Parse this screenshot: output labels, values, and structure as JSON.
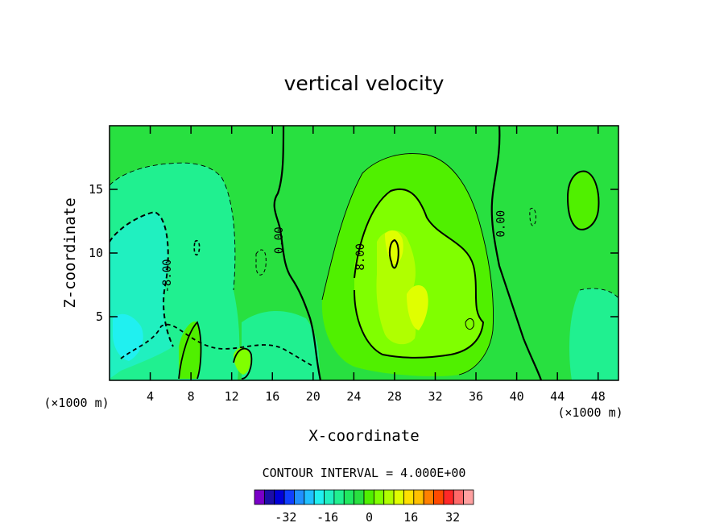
{
  "chart_data": {
    "type": "contour",
    "title": "vertical velocity",
    "xlabel": "X-coordinate",
    "ylabel": "Z-coordinate",
    "x_unit": "(×1000 m)",
    "y_unit": "(×1000 m)",
    "xlim": [
      0,
      50
    ],
    "ylim": [
      0,
      20
    ],
    "x_ticks": [
      4,
      8,
      12,
      16,
      20,
      24,
      28,
      32,
      36,
      40,
      44,
      48
    ],
    "y_ticks": [
      5,
      10,
      15
    ],
    "contour_interval_text": "CONTOUR INTERVAL = 4.000E+00",
    "contour_interval": 4,
    "contour_labels": [
      {
        "text": "-8.00",
        "x": 6.0,
        "y": 8.2
      },
      {
        "text": "0.00",
        "x": 17.0,
        "y": 11.0
      },
      {
        "text": "8.00",
        "x": 25.0,
        "y": 9.7
      },
      {
        "text": "0.00",
        "x": 38.8,
        "y": 12.3
      }
    ],
    "colorbar": {
      "levels": [
        -40,
        -36,
        -32,
        -28,
        -24,
        -20,
        -16,
        -12,
        -8,
        -4,
        0,
        4,
        8,
        12,
        16,
        20,
        24,
        28,
        32,
        36,
        40
      ],
      "colors": [
        "#7a00c8",
        "#1c0ea8",
        "#0000d8",
        "#1040ff",
        "#2090ff",
        "#20c0ff",
        "#20f0f0",
        "#20f0c0",
        "#20f090",
        "#20e860",
        "#28e040",
        "#50f000",
        "#80ff00",
        "#b0ff00",
        "#e0ff00",
        "#ffe000",
        "#ffc000",
        "#ff8000",
        "#ff4a00",
        "#ff2828",
        "#ff6a6a",
        "#ffa0a0"
      ],
      "tick_labels": [
        "-32",
        "-16",
        "0",
        "16",
        "32"
      ],
      "tick_values": [
        -32,
        -16,
        0,
        16,
        32
      ]
    },
    "background_color": "#28e040"
  }
}
